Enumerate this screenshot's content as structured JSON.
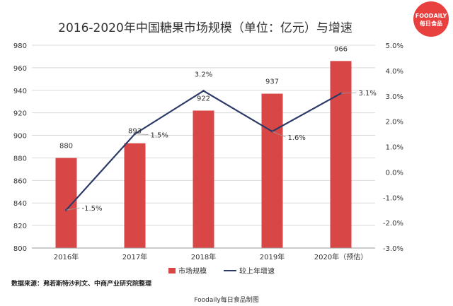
{
  "logo": {
    "line1": "FOODAILY",
    "line2": "每日食品",
    "color": "#e8403f"
  },
  "source_note": "数据来源：弗若斯特沙利文、中商产业研究院整理",
  "footer": "Foodaily每日食品制图",
  "colors": {
    "bar": "#d94646",
    "line": "#2b3a67",
    "grid": "#d9d9d9",
    "axis": "#999999"
  },
  "chart_data": {
    "type": "bar",
    "title": "2016-2020年中国糖果市场规模（单位：亿元）与增速",
    "categories": [
      "2016年",
      "2017年",
      "2018年",
      "2019年",
      "2020年（预估）"
    ],
    "series": [
      {
        "name": "市场规模",
        "type": "bar",
        "axis": "left",
        "values": [
          880,
          893,
          922,
          937,
          966
        ],
        "labels": [
          "880",
          "893",
          "922",
          "937",
          "966"
        ]
      },
      {
        "name": "较上年增速",
        "type": "line",
        "axis": "right",
        "values": [
          -1.5,
          1.5,
          3.2,
          1.6,
          3.1
        ],
        "labels": [
          "-1.5%",
          "1.5%",
          "3.2%",
          "1.6%",
          "3.1%"
        ]
      }
    ],
    "ylim_left": [
      800,
      980
    ],
    "yticks_left": [
      "800",
      "820",
      "840",
      "860",
      "880",
      "900",
      "920",
      "940",
      "960",
      "980"
    ],
    "ylim_right": [
      -3.0,
      5.0
    ],
    "yticks_right": [
      "-3.0%",
      "-2.0%",
      "-1.0%",
      "0.0%",
      "1.0%",
      "2.0%",
      "3.0%",
      "4.0%",
      "5.0%"
    ],
    "grid": true,
    "legend_position": "bottom"
  }
}
